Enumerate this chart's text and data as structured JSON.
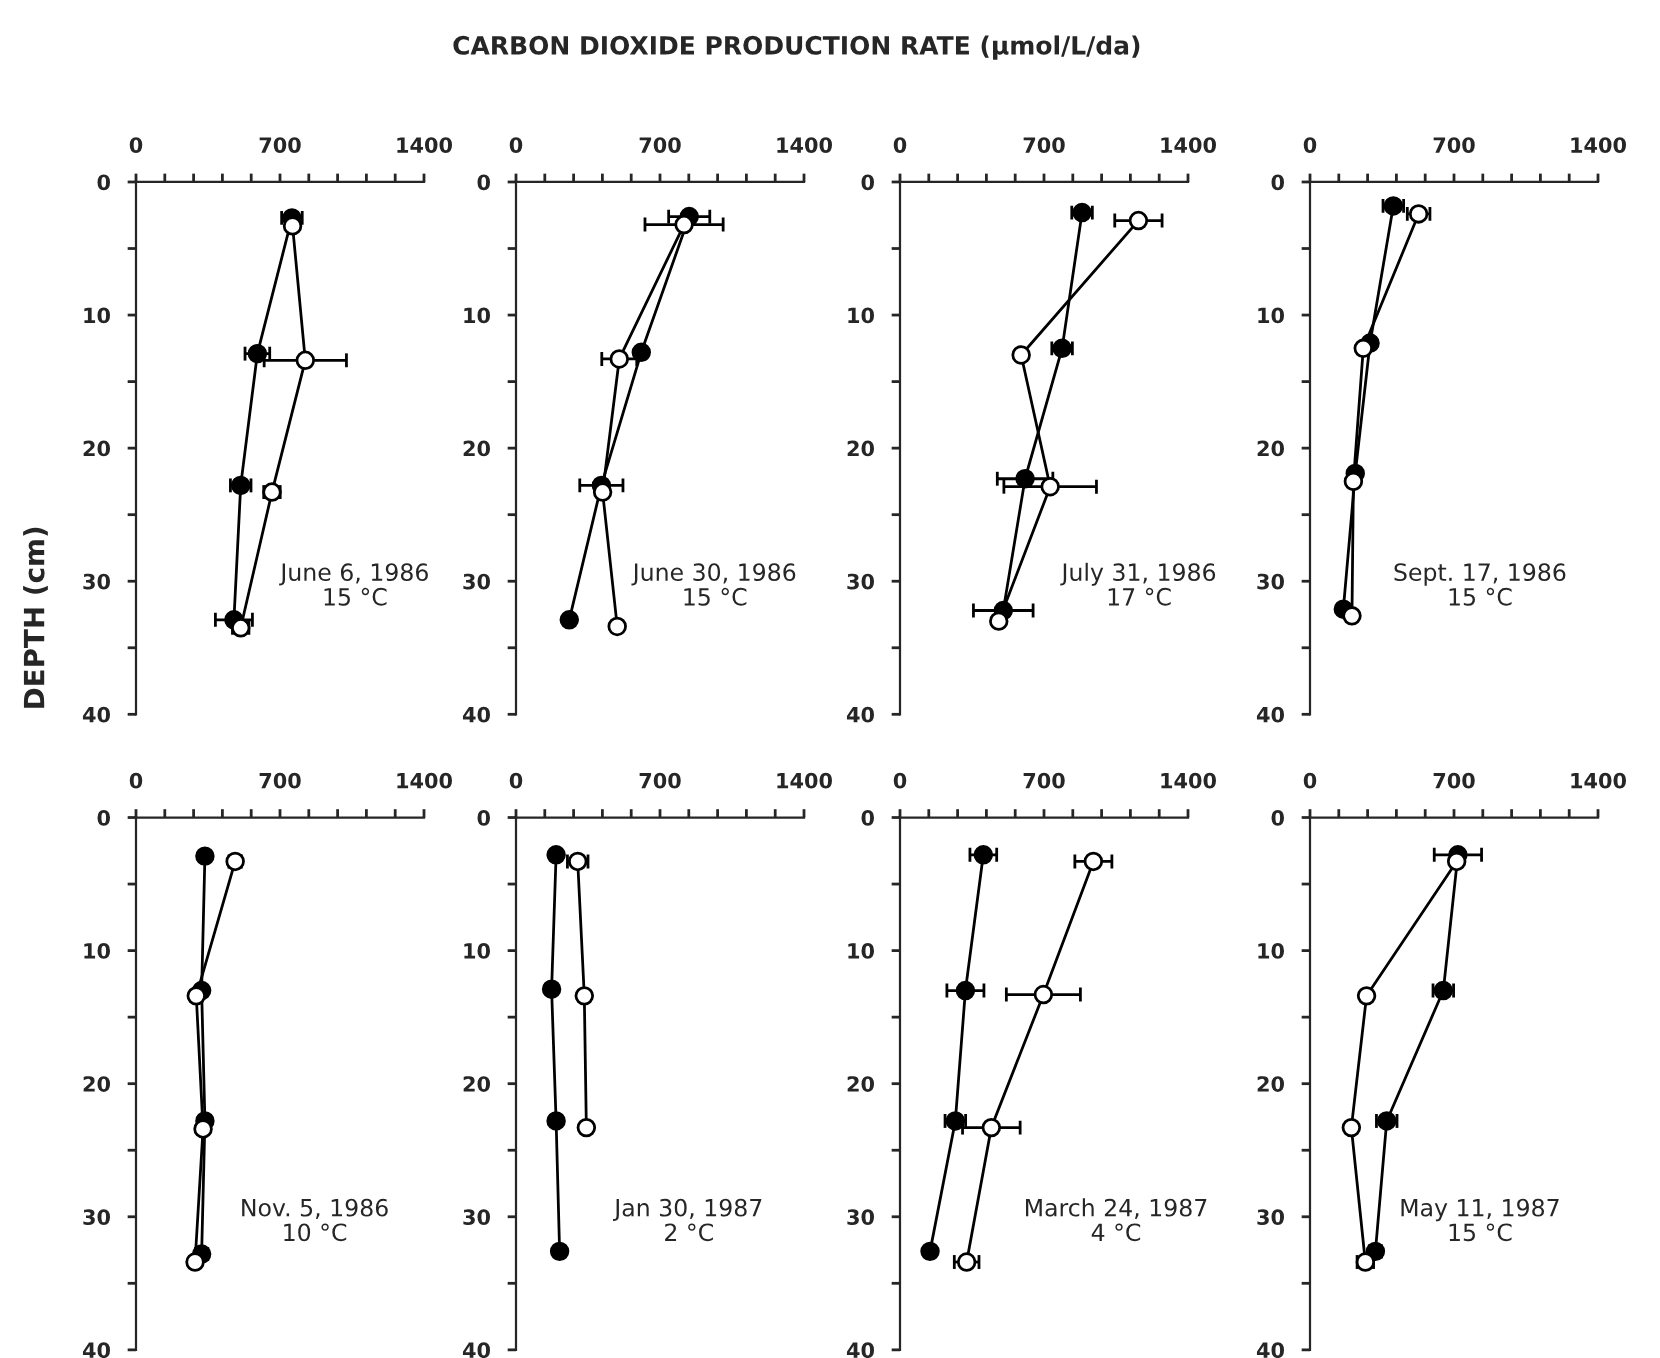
{
  "chart_data": [
    {
      "type": "line",
      "ylabel": "DEPTH (cm)",
      "xlim": [
        0,
        1400
      ],
      "xticks": [
        0,
        {
          "value": 140,
          "label": null
        },
        {
          "value": 280,
          "label": null
        },
        {
          "value": 420,
          "label": null
        },
        {
          "value": 560,
          "label": null
        },
        700,
        {
          "value": 840,
          "label": null
        },
        {
          "value": 980,
          "label": null
        },
        {
          "value": 1120,
          "label": null
        },
        {
          "value": 1260,
          "label": null
        },
        1400
      ],
      "ylim": [
        40,
        0
      ],
      "yticks": [
        0,
        {
          "value": 5,
          "label": null
        },
        10,
        {
          "value": 15,
          "label": null
        },
        20,
        {
          "value": 25,
          "label": null
        },
        30,
        {
          "value": 35,
          "label": null
        },
        40
      ],
      "marker": "circle",
      "grid": false,
      "annotations": [
        "June 6, 1986\n15 °C"
      ],
      "series": [
        {
          "color": "#000000",
          "x": [
            758,
            590,
            509,
            476
          ],
          "values": [
            2.7,
            12.9,
            22.8,
            32.9
          ],
          "xerrors": [
            50,
            60,
            50,
            90
          ]
        },
        {
          "color": "#ffffff",
          "x": [
            761,
            823,
            661,
            509
          ],
          "values": [
            3.3,
            13.4,
            23.3,
            33.5
          ],
          "xerrors": [
            null,
            200,
            40,
            40
          ]
        }
      ]
    },
    {
      "type": "line",
      "title": "CARBON DIOXIDE PRODUCTION RATE (µmol/L/da)",
      "xlim": [
        0,
        1400
      ],
      "xticks": [
        0,
        {
          "value": 140,
          "label": null
        },
        {
          "value": 280,
          "label": null
        },
        {
          "value": 420,
          "label": null
        },
        {
          "value": 560,
          "label": null
        },
        700,
        {
          "value": 840,
          "label": null
        },
        {
          "value": 980,
          "label": null
        },
        {
          "value": 1120,
          "label": null
        },
        {
          "value": 1260,
          "label": null
        },
        1400
      ],
      "ylim": [
        40,
        0
      ],
      "yticks": [
        0,
        {
          "value": 5,
          "label": null
        },
        10,
        {
          "value": 15,
          "label": null
        },
        20,
        {
          "value": 25,
          "label": null
        },
        30,
        {
          "value": 35,
          "label": null
        },
        40
      ],
      "marker": "circle",
      "grid": false,
      "annotations": [
        "June 30, 1986\n15 °C"
      ],
      "series": [
        {
          "color": "#000000",
          "x": [
            842,
            609,
            415,
            259
          ],
          "values": [
            2.6,
            12.8,
            22.8,
            32.9
          ],
          "xerrors": [
            100,
            null,
            105,
            null
          ]
        },
        {
          "color": "#ffffff",
          "x": [
            817,
            502,
            421,
            492
          ],
          "values": [
            3.2,
            13.3,
            23.3,
            33.4
          ],
          "xerrors": [
            190,
            85,
            null,
            null
          ]
        }
      ]
    },
    {
      "type": "line",
      "xlim": [
        0,
        1400
      ],
      "xticks": [
        0,
        {
          "value": 140,
          "label": null
        },
        {
          "value": 280,
          "label": null
        },
        {
          "value": 420,
          "label": null
        },
        {
          "value": 560,
          "label": null
        },
        700,
        {
          "value": 840,
          "label": null
        },
        {
          "value": 980,
          "label": null
        },
        {
          "value": 1120,
          "label": null
        },
        {
          "value": 1260,
          "label": null
        },
        1400
      ],
      "ylim": [
        40,
        0
      ],
      "yticks": [
        0,
        {
          "value": 5,
          "label": null
        },
        10,
        {
          "value": 15,
          "label": null
        },
        20,
        {
          "value": 25,
          "label": null
        },
        30,
        {
          "value": 35,
          "label": null
        },
        40
      ],
      "marker": "circle",
      "grid": false,
      "annotations": [
        "July 31, 1986\n17 °C"
      ],
      "series": [
        {
          "color": "#000000",
          "x": [
            885,
            788,
            608,
            502
          ],
          "values": [
            2.3,
            12.5,
            22.3,
            32.2
          ],
          "xerrors": [
            50,
            50,
            135,
            145
          ]
        },
        {
          "color": "#ffffff",
          "x": [
            1159,
            589,
            730,
            480
          ],
          "values": [
            2.9,
            13.0,
            22.9,
            33.0
          ],
          "xerrors": [
            115,
            null,
            225,
            null
          ]
        }
      ]
    },
    {
      "type": "line",
      "xlim": [
        0,
        1400
      ],
      "xticks": [
        0,
        {
          "value": 140,
          "label": null
        },
        {
          "value": 280,
          "label": null
        },
        {
          "value": 420,
          "label": null
        },
        {
          "value": 560,
          "label": null
        },
        700,
        {
          "value": 840,
          "label": null
        },
        {
          "value": 980,
          "label": null
        },
        {
          "value": 1120,
          "label": null
        },
        {
          "value": 1260,
          "label": null
        },
        1400
      ],
      "ylim": [
        40,
        0
      ],
      "yticks": [
        0,
        {
          "value": 5,
          "label": null
        },
        10,
        {
          "value": 15,
          "label": null
        },
        20,
        {
          "value": 25,
          "label": null
        },
        30,
        {
          "value": 35,
          "label": null
        },
        40
      ],
      "marker": "circle",
      "grid": false,
      "annotations": [
        "Sept. 17, 1986\n15 °C"
      ],
      "series": [
        {
          "color": "#000000",
          "x": [
            405,
            292,
            220,
            162
          ],
          "values": [
            1.8,
            12.1,
            21.9,
            32.1
          ],
          "xerrors": [
            50,
            null,
            null,
            null
          ]
        },
        {
          "color": "#ffffff",
          "x": [
            528,
            259,
            211,
            204
          ],
          "values": [
            2.4,
            12.5,
            22.5,
            32.6
          ],
          "xerrors": [
            55,
            null,
            null,
            null
          ]
        }
      ]
    },
    {
      "type": "line",
      "xlim": [
        0,
        1400
      ],
      "xticks": [
        0,
        {
          "value": 140,
          "label": null
        },
        {
          "value": 280,
          "label": null
        },
        {
          "value": 420,
          "label": null
        },
        {
          "value": 560,
          "label": null
        },
        700,
        {
          "value": 840,
          "label": null
        },
        {
          "value": 980,
          "label": null
        },
        {
          "value": 1120,
          "label": null
        },
        {
          "value": 1260,
          "label": null
        },
        1400
      ],
      "ylim": [
        40,
        0
      ],
      "yticks": [
        0,
        {
          "value": 5,
          "label": null
        },
        10,
        {
          "value": 15,
          "label": null
        },
        20,
        {
          "value": 25,
          "label": null
        },
        30,
        {
          "value": 35,
          "label": null
        },
        40
      ],
      "marker": "circle",
      "grid": false,
      "annotations": [
        "Nov. 5, 1986\n10 °C"
      ],
      "series": [
        {
          "color": "#000000",
          "x": [
            335,
            319,
            335,
            319
          ],
          "values": [
            2.9,
            13.0,
            22.8,
            32.8
          ],
          "xerrors": [
            null,
            null,
            null,
            30
          ]
        },
        {
          "color": "#ffffff",
          "x": [
            482,
            293,
            326,
            287
          ],
          "values": [
            3.3,
            13.4,
            23.4,
            33.4
          ],
          "xerrors": [
            30,
            null,
            null,
            null
          ]
        }
      ]
    },
    {
      "type": "line",
      "xlim": [
        0,
        1400
      ],
      "xticks": [
        0,
        {
          "value": 140,
          "label": null
        },
        {
          "value": 280,
          "label": null
        },
        {
          "value": 420,
          "label": null
        },
        {
          "value": 560,
          "label": null
        },
        700,
        {
          "value": 840,
          "label": null
        },
        {
          "value": 980,
          "label": null
        },
        {
          "value": 1120,
          "label": null
        },
        {
          "value": 1260,
          "label": null
        },
        1400
      ],
      "ylim": [
        40,
        0
      ],
      "yticks": [
        0,
        {
          "value": 5,
          "label": null
        },
        10,
        {
          "value": 15,
          "label": null
        },
        20,
        {
          "value": 25,
          "label": null
        },
        30,
        {
          "value": 35,
          "label": null
        },
        40
      ],
      "marker": "circle",
      "grid": false,
      "annotations": [
        "Jan 30, 1987\n2 °C"
      ],
      "series": [
        {
          "color": "#000000",
          "x": [
            195,
            173,
            195,
            212
          ],
          "values": [
            2.8,
            12.9,
            22.8,
            32.6
          ],
          "xerrors": [
            null,
            null,
            20,
            null
          ]
        },
        {
          "color": "#ffffff",
          "x": [
            300,
            332,
            342
          ],
          "values": [
            3.3,
            13.4,
            23.3
          ],
          "xerrors": [
            50,
            20,
            null
          ]
        }
      ]
    },
    {
      "type": "line",
      "xlim": [
        0,
        1400
      ],
      "xticks": [
        0,
        {
          "value": 140,
          "label": null
        },
        {
          "value": 280,
          "label": null
        },
        {
          "value": 420,
          "label": null
        },
        {
          "value": 560,
          "label": null
        },
        700,
        {
          "value": 840,
          "label": null
        },
        {
          "value": 980,
          "label": null
        },
        {
          "value": 1120,
          "label": null
        },
        {
          "value": 1260,
          "label": null
        },
        1400
      ],
      "ylim": [
        40,
        0
      ],
      "yticks": [
        0,
        {
          "value": 5,
          "label": null
        },
        10,
        {
          "value": 15,
          "label": null
        },
        20,
        {
          "value": 25,
          "label": null
        },
        30,
        {
          "value": 35,
          "label": null
        },
        40
      ],
      "marker": "circle",
      "grid": false,
      "annotations": [
        "March 24, 1987\n4 °C"
      ],
      "series": [
        {
          "color": "#000000",
          "x": [
            405,
            318,
            269,
            146
          ],
          "values": [
            2.8,
            13.0,
            22.8,
            32.6
          ],
          "xerrors": [
            65,
            90,
            50,
            null
          ]
        },
        {
          "color": "#ffffff",
          "x": [
            940,
            697,
            444,
            324
          ],
          "values": [
            3.3,
            13.3,
            23.3,
            33.4
          ],
          "xerrors": [
            90,
            180,
            140,
            60
          ]
        }
      ]
    },
    {
      "type": "line",
      "xlim": [
        0,
        1400
      ],
      "xticks": [
        0,
        {
          "value": 140,
          "label": null
        },
        {
          "value": 280,
          "label": null
        },
        {
          "value": 420,
          "label": null
        },
        {
          "value": 560,
          "label": null
        },
        700,
        {
          "value": 840,
          "label": null
        },
        {
          "value": 980,
          "label": null
        },
        {
          "value": 1120,
          "label": null
        },
        {
          "value": 1260,
          "label": null
        },
        1400
      ],
      "ylim": [
        40,
        0
      ],
      "yticks": [
        0,
        {
          "value": 5,
          "label": null
        },
        10,
        {
          "value": 15,
          "label": null
        },
        20,
        {
          "value": 25,
          "label": null
        },
        30,
        {
          "value": 35,
          "label": null
        },
        40
      ],
      "marker": "circle",
      "grid": false,
      "annotations": [
        "May 11, 1987\n15 °C"
      ],
      "series": [
        {
          "color": "#000000",
          "x": [
            719,
            648,
            373,
            318
          ],
          "values": [
            2.8,
            13.0,
            22.8,
            32.6
          ],
          "xerrors": [
            115,
            50,
            50,
            30
          ]
        },
        {
          "color": "#ffffff",
          "x": [
            713,
            275,
            201,
            269
          ],
          "values": [
            3.3,
            13.4,
            23.3,
            33.4
          ],
          "xerrors": [
            null,
            null,
            null,
            40
          ]
        }
      ]
    }
  ]
}
